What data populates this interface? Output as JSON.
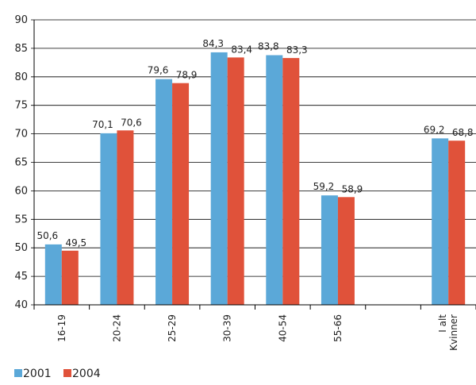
{
  "chart_data": {
    "type": "bar",
    "categories": [
      "16-19",
      "20-24",
      "25-29",
      "30-39",
      "40-54",
      "55-66",
      "",
      "I alt\nKvinner"
    ],
    "series": [
      {
        "name": "2001",
        "values": [
          50.6,
          70.1,
          79.6,
          84.3,
          83.8,
          59.2,
          null,
          69.2
        ],
        "labels": [
          "50,6",
          "70,1",
          "79,6",
          "84,3",
          "83,8",
          "59,2",
          null,
          "69,2"
        ]
      },
      {
        "name": "2004",
        "values": [
          49.5,
          70.6,
          78.9,
          83.4,
          83.3,
          58.9,
          null,
          68.8
        ],
        "labels": [
          "49,5",
          "70,6",
          "78,9",
          "83,4",
          "83,3",
          "58,9",
          null,
          "68,8"
        ]
      }
    ],
    "ylim": [
      40,
      90
    ],
    "yticks": [
      40,
      45,
      50,
      55,
      60,
      65,
      70,
      75,
      80,
      85,
      90
    ],
    "grid": true,
    "legend_position": "bottom-left",
    "colors": {
      "2001": "#5ba8d8",
      "2004": "#e0523a"
    }
  }
}
